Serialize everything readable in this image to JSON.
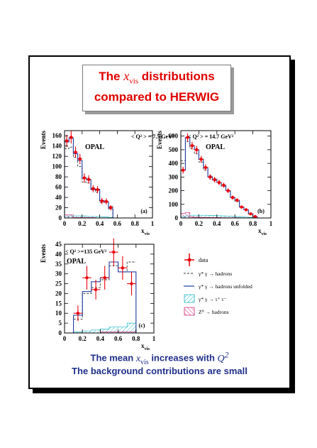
{
  "title": {
    "line1_prefix": "The ",
    "line1_math": "x",
    "line1_math_sub": "vis",
    "line1_suffix": " distributions",
    "line2": "compared to HERWIG"
  },
  "footer": {
    "line1_prefix": "The mean ",
    "line1_math": "x",
    "line1_math_sub": "vis",
    "line1_mid": " increases with ",
    "line1_math2": "Q",
    "line1_math2_sup": "2",
    "line2": "The background contributions are small"
  },
  "legend": {
    "data": "data",
    "herwig": "γ* γ → hadrons",
    "unfolded": "γ* γ → hadrons unfolded",
    "tautau": "γ* γ → τ⁺ τ⁻",
    "z0": "Z⁰ → hadrons"
  },
  "colors": {
    "title": "#e00000",
    "footer": "#1f2f8a",
    "data_marker": "#e8000b",
    "unfolded_line": "#1f3b9e",
    "tautau_hatch": "#22b8c8",
    "z0_hatch": "#d0307a"
  },
  "chart_data": [
    {
      "type": "histogram",
      "panel_label": "(a)",
      "annotation": "< Q² > = 7.5 GeV²",
      "experiment": "OPAL",
      "xlabel": "x_vis",
      "ylabel": "Events",
      "xlim": [
        0,
        1
      ],
      "ylim": [
        0,
        170
      ],
      "xticks": [
        0,
        0.2,
        0.4,
        0.6,
        0.8,
        1
      ],
      "yticks": [
        0,
        20,
        40,
        60,
        80,
        100,
        120,
        140,
        160
      ],
      "bin_edges": [
        0,
        0.05,
        0.1,
        0.15,
        0.2,
        0.25,
        0.3,
        0.35,
        0.4,
        0.45,
        0.5,
        0.55,
        0.6
      ],
      "series": [
        {
          "name": "data",
          "x": [
            0.025,
            0.075,
            0.125,
            0.175,
            0.225,
            0.275,
            0.325,
            0.375,
            0.425,
            0.475,
            0.525
          ],
          "y": [
            150,
            157,
            128,
            115,
            78,
            75,
            57,
            55,
            33,
            32,
            20
          ],
          "yerr": [
            12,
            12,
            11,
            10,
            9,
            8,
            7,
            7,
            6,
            6,
            5
          ]
        },
        {
          "name": "γ* γ → hadrons",
          "values": [
            135,
            138,
            118,
            100,
            70,
            68,
            58,
            50,
            30,
            32,
            22,
            0
          ]
        },
        {
          "name": "γ* γ → hadrons unfolded",
          "values": [
            148,
            155,
            125,
            112,
            78,
            74,
            55,
            56,
            34,
            31,
            18,
            0
          ]
        },
        {
          "name": "γ* γ → τ⁺ τ⁻",
          "values": [
            3,
            4,
            4,
            4,
            4,
            3,
            3,
            3,
            2,
            2,
            1,
            0
          ]
        },
        {
          "name": "Z⁰ → hadrons",
          "values": [
            6,
            6,
            1,
            1,
            1,
            1,
            1,
            0,
            0,
            0,
            0,
            0
          ]
        }
      ]
    },
    {
      "type": "histogram",
      "panel_label": "(b)",
      "annotation": "< Q² > = 14.7 GeV²",
      "experiment": "OPAL",
      "xlabel": "x_vis",
      "ylabel": "Events",
      "xlim": [
        0,
        1
      ],
      "ylim": [
        0,
        640
      ],
      "xticks": [
        0,
        0.2,
        0.4,
        0.6,
        0.8,
        1
      ],
      "yticks": [
        0,
        100,
        200,
        300,
        400,
        500,
        600
      ],
      "bin_edges": [
        0,
        0.05,
        0.1,
        0.15,
        0.2,
        0.25,
        0.3,
        0.35,
        0.4,
        0.45,
        0.5,
        0.55,
        0.6,
        0.65,
        0.7,
        0.75,
        0.8,
        0.85
      ],
      "series": [
        {
          "name": "data",
          "x": [
            0.025,
            0.075,
            0.125,
            0.175,
            0.225,
            0.275,
            0.325,
            0.375,
            0.425,
            0.475,
            0.525,
            0.575,
            0.625,
            0.675,
            0.725,
            0.775,
            0.825
          ],
          "y": [
            350,
            590,
            530,
            500,
            430,
            370,
            300,
            280,
            260,
            240,
            200,
            150,
            130,
            80,
            60,
            30,
            10
          ],
          "yerr": [
            25,
            30,
            28,
            27,
            25,
            23,
            20,
            20,
            19,
            18,
            17,
            15,
            14,
            11,
            10,
            7,
            5
          ]
        },
        {
          "name": "γ* γ → hadrons",
          "values": [
            420,
            560,
            510,
            470,
            410,
            350,
            310,
            290,
            260,
            230,
            200,
            150,
            120,
            80,
            60,
            30,
            10
          ]
        },
        {
          "name": "γ* γ → hadrons unfolded",
          "values": [
            350,
            590,
            530,
            500,
            430,
            370,
            300,
            280,
            260,
            240,
            200,
            150,
            130,
            80,
            60,
            30,
            10
          ]
        },
        {
          "name": "γ* γ → τ⁺ τ⁻",
          "values": [
            10,
            15,
            20,
            20,
            20,
            20,
            18,
            18,
            16,
            15,
            14,
            12,
            10,
            8,
            6,
            4,
            2
          ]
        },
        {
          "name": "Z⁰ → hadrons",
          "values": [
            35,
            40,
            8,
            5,
            4,
            4,
            3,
            3,
            3,
            2,
            2,
            2,
            2,
            1,
            1,
            1,
            0
          ]
        }
      ]
    },
    {
      "type": "histogram",
      "panel_label": "(c)",
      "annotation": "< Q² >=135 GeV²",
      "experiment": "OPAL",
      "xlabel": "x_vis",
      "ylabel": "Events",
      "xlim": [
        0,
        1
      ],
      "ylim": [
        0,
        45
      ],
      "xticks": [
        0,
        0.2,
        0.4,
        0.6,
        0.8,
        1
      ],
      "yticks": [
        0,
        5,
        10,
        15,
        20,
        25,
        30,
        35,
        40,
        45
      ],
      "bin_edges": [
        0.1,
        0.2,
        0.3,
        0.4,
        0.5,
        0.6,
        0.7,
        0.8
      ],
      "series": [
        {
          "name": "data",
          "x": [
            0.15,
            0.25,
            0.35,
            0.45,
            0.55,
            0.65,
            0.75
          ],
          "y": [
            10,
            28,
            22,
            28,
            41,
            33,
            25
          ],
          "yerr": [
            4,
            6,
            5,
            6,
            7,
            6,
            6
          ],
          "xerr": 0.05
        },
        {
          "name": "γ* γ → hadrons",
          "values": [
            7,
            20,
            23,
            27,
            34,
            31,
            36
          ]
        },
        {
          "name": "γ* γ → hadrons unfolded",
          "values": [
            9,
            21,
            26,
            28,
            36,
            31,
            31
          ]
        },
        {
          "name": "γ* γ → τ⁺ τ⁻",
          "values": [
            0.5,
            1,
            1.5,
            2,
            3,
            3,
            5
          ]
        },
        {
          "name": "Z⁰ → hadrons",
          "values": [
            0,
            0,
            0,
            0.5,
            0.5,
            0.5,
            0.5
          ]
        }
      ]
    }
  ]
}
